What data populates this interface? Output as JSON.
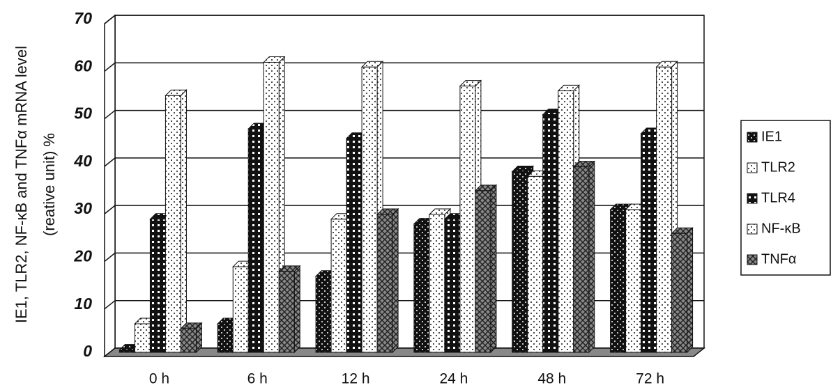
{
  "chart_data": {
    "type": "bar3d",
    "y_label": [
      "IE1, TLR2, NF-κB and TNFα mRNA level",
      "(reative unit) %"
    ],
    "categories": [
      "0 h",
      "6 h",
      "12 h",
      "24 h",
      "48 h",
      "72 h"
    ],
    "series": [
      {
        "name": "IE1",
        "color": "#111111",
        "values": [
          0.5,
          6,
          16,
          27,
          38,
          30
        ]
      },
      {
        "name": "TLR2",
        "color": "#ffffff",
        "values": [
          6,
          18,
          28,
          29,
          37,
          30
        ]
      },
      {
        "name": "TLR4",
        "color": "#111111",
        "values": [
          28,
          47,
          45,
          28,
          50,
          46
        ]
      },
      {
        "name": "NF-κB",
        "color": "#ffffff",
        "values": [
          54,
          61,
          60,
          56,
          55,
          60
        ]
      },
      {
        "name": "TNFα",
        "color": "#888888",
        "values": [
          5,
          17,
          29,
          34,
          39,
          25
        ]
      }
    ],
    "ylim": [
      0,
      70
    ],
    "yticks": [
      0,
      10,
      20,
      30,
      40,
      50,
      60,
      70
    ],
    "grid": true
  }
}
